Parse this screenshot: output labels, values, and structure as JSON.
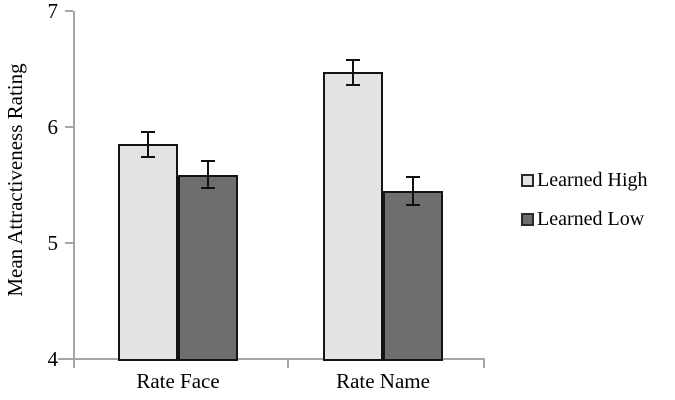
{
  "chart_data": {
    "type": "bar",
    "title": "",
    "categories": [
      "Rate Face",
      "Rate Name"
    ],
    "series": [
      {
        "name": "Learned High",
        "values": [
          5.85,
          6.47
        ],
        "errors": [
          0.11,
          0.11
        ],
        "fill": "#e3e3e3",
        "border": "#141414"
      },
      {
        "name": "Learned Low",
        "values": [
          5.59,
          5.45
        ],
        "errors": [
          0.12,
          0.12
        ],
        "fill": "#6e6e6e",
        "border": "#141414"
      }
    ],
    "xlabel": "",
    "ylabel": "Mean Attractiveness Rating",
    "ylim": [
      4,
      7
    ],
    "yticks": [
      4,
      5,
      6,
      7
    ],
    "grid": false,
    "error_bars": true,
    "legend_position": "right",
    "axis_color": "#a6a6a6",
    "bar_edge_color": "#141414",
    "error_bar_color": "#111111",
    "text_color": "#000000",
    "background_color": "#ffffff"
  }
}
